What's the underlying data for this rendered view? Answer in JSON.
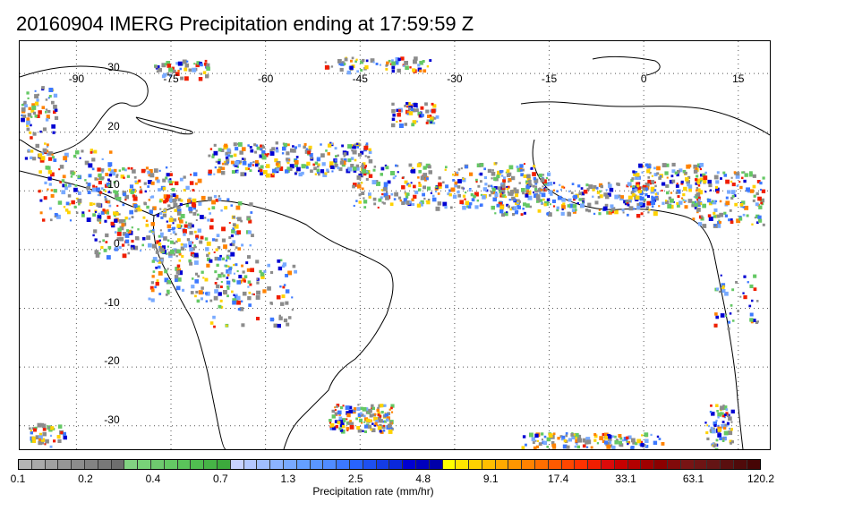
{
  "title": "20160904 IMERG Precipitation ending at 17:59:59 Z",
  "map": {
    "lon_labels": [
      "-90",
      "-75",
      "-60",
      "-45",
      "-30",
      "-15",
      "0",
      "15"
    ],
    "lat_labels": [
      "30",
      "20",
      "10",
      "0",
      "-10",
      "-20",
      "-30"
    ],
    "grid_lon": [
      -90,
      -75,
      -60,
      -45,
      -30,
      -15,
      0,
      15
    ],
    "grid_lat": [
      30,
      20,
      10,
      0,
      -10,
      -20,
      -30
    ],
    "lon_range": [
      -99,
      20
    ],
    "lat_range": [
      35.5,
      -34
    ]
  },
  "colorbar": {
    "label": "Precipitation rate (mm/hr)",
    "ticks": [
      "0.1",
      "0.2",
      "0.4",
      "0.7",
      "1.3",
      "2.5",
      "4.8",
      "9.1",
      "17.4",
      "33.1",
      "63.1",
      "120.2"
    ],
    "colors": [
      "#b4b4b4",
      "#aaaaaa",
      "#a0a0a0",
      "#969696",
      "#8c8c8c",
      "#828282",
      "#787878",
      "#6e6e6e",
      "#82d282",
      "#78d278",
      "#6ec86e",
      "#64c864",
      "#5ac35a",
      "#50be50",
      "#46b446",
      "#3caa3c",
      "#c8d2ff",
      "#b4c8ff",
      "#a0beff",
      "#8cb4ff",
      "#78aaff",
      "#64a0ff",
      "#5a96ff",
      "#508cff",
      "#3c78ff",
      "#2864ff",
      "#1e50f0",
      "#143ce6",
      "#0a28dc",
      "#0000d2",
      "#0000be",
      "#0000aa",
      "#ffff00",
      "#ffe600",
      "#ffd200",
      "#ffbe00",
      "#ffaa00",
      "#ff9600",
      "#ff8200",
      "#ff6e00",
      "#ff5a00",
      "#ff4600",
      "#ff3200",
      "#f01e00",
      "#dc0a0a",
      "#c80000",
      "#b40000",
      "#a00000",
      "#8c0000",
      "#820a0a",
      "#781414",
      "#6e1414",
      "#641414",
      "#5a0f0f",
      "#500a0a",
      "#460505"
    ]
  }
}
